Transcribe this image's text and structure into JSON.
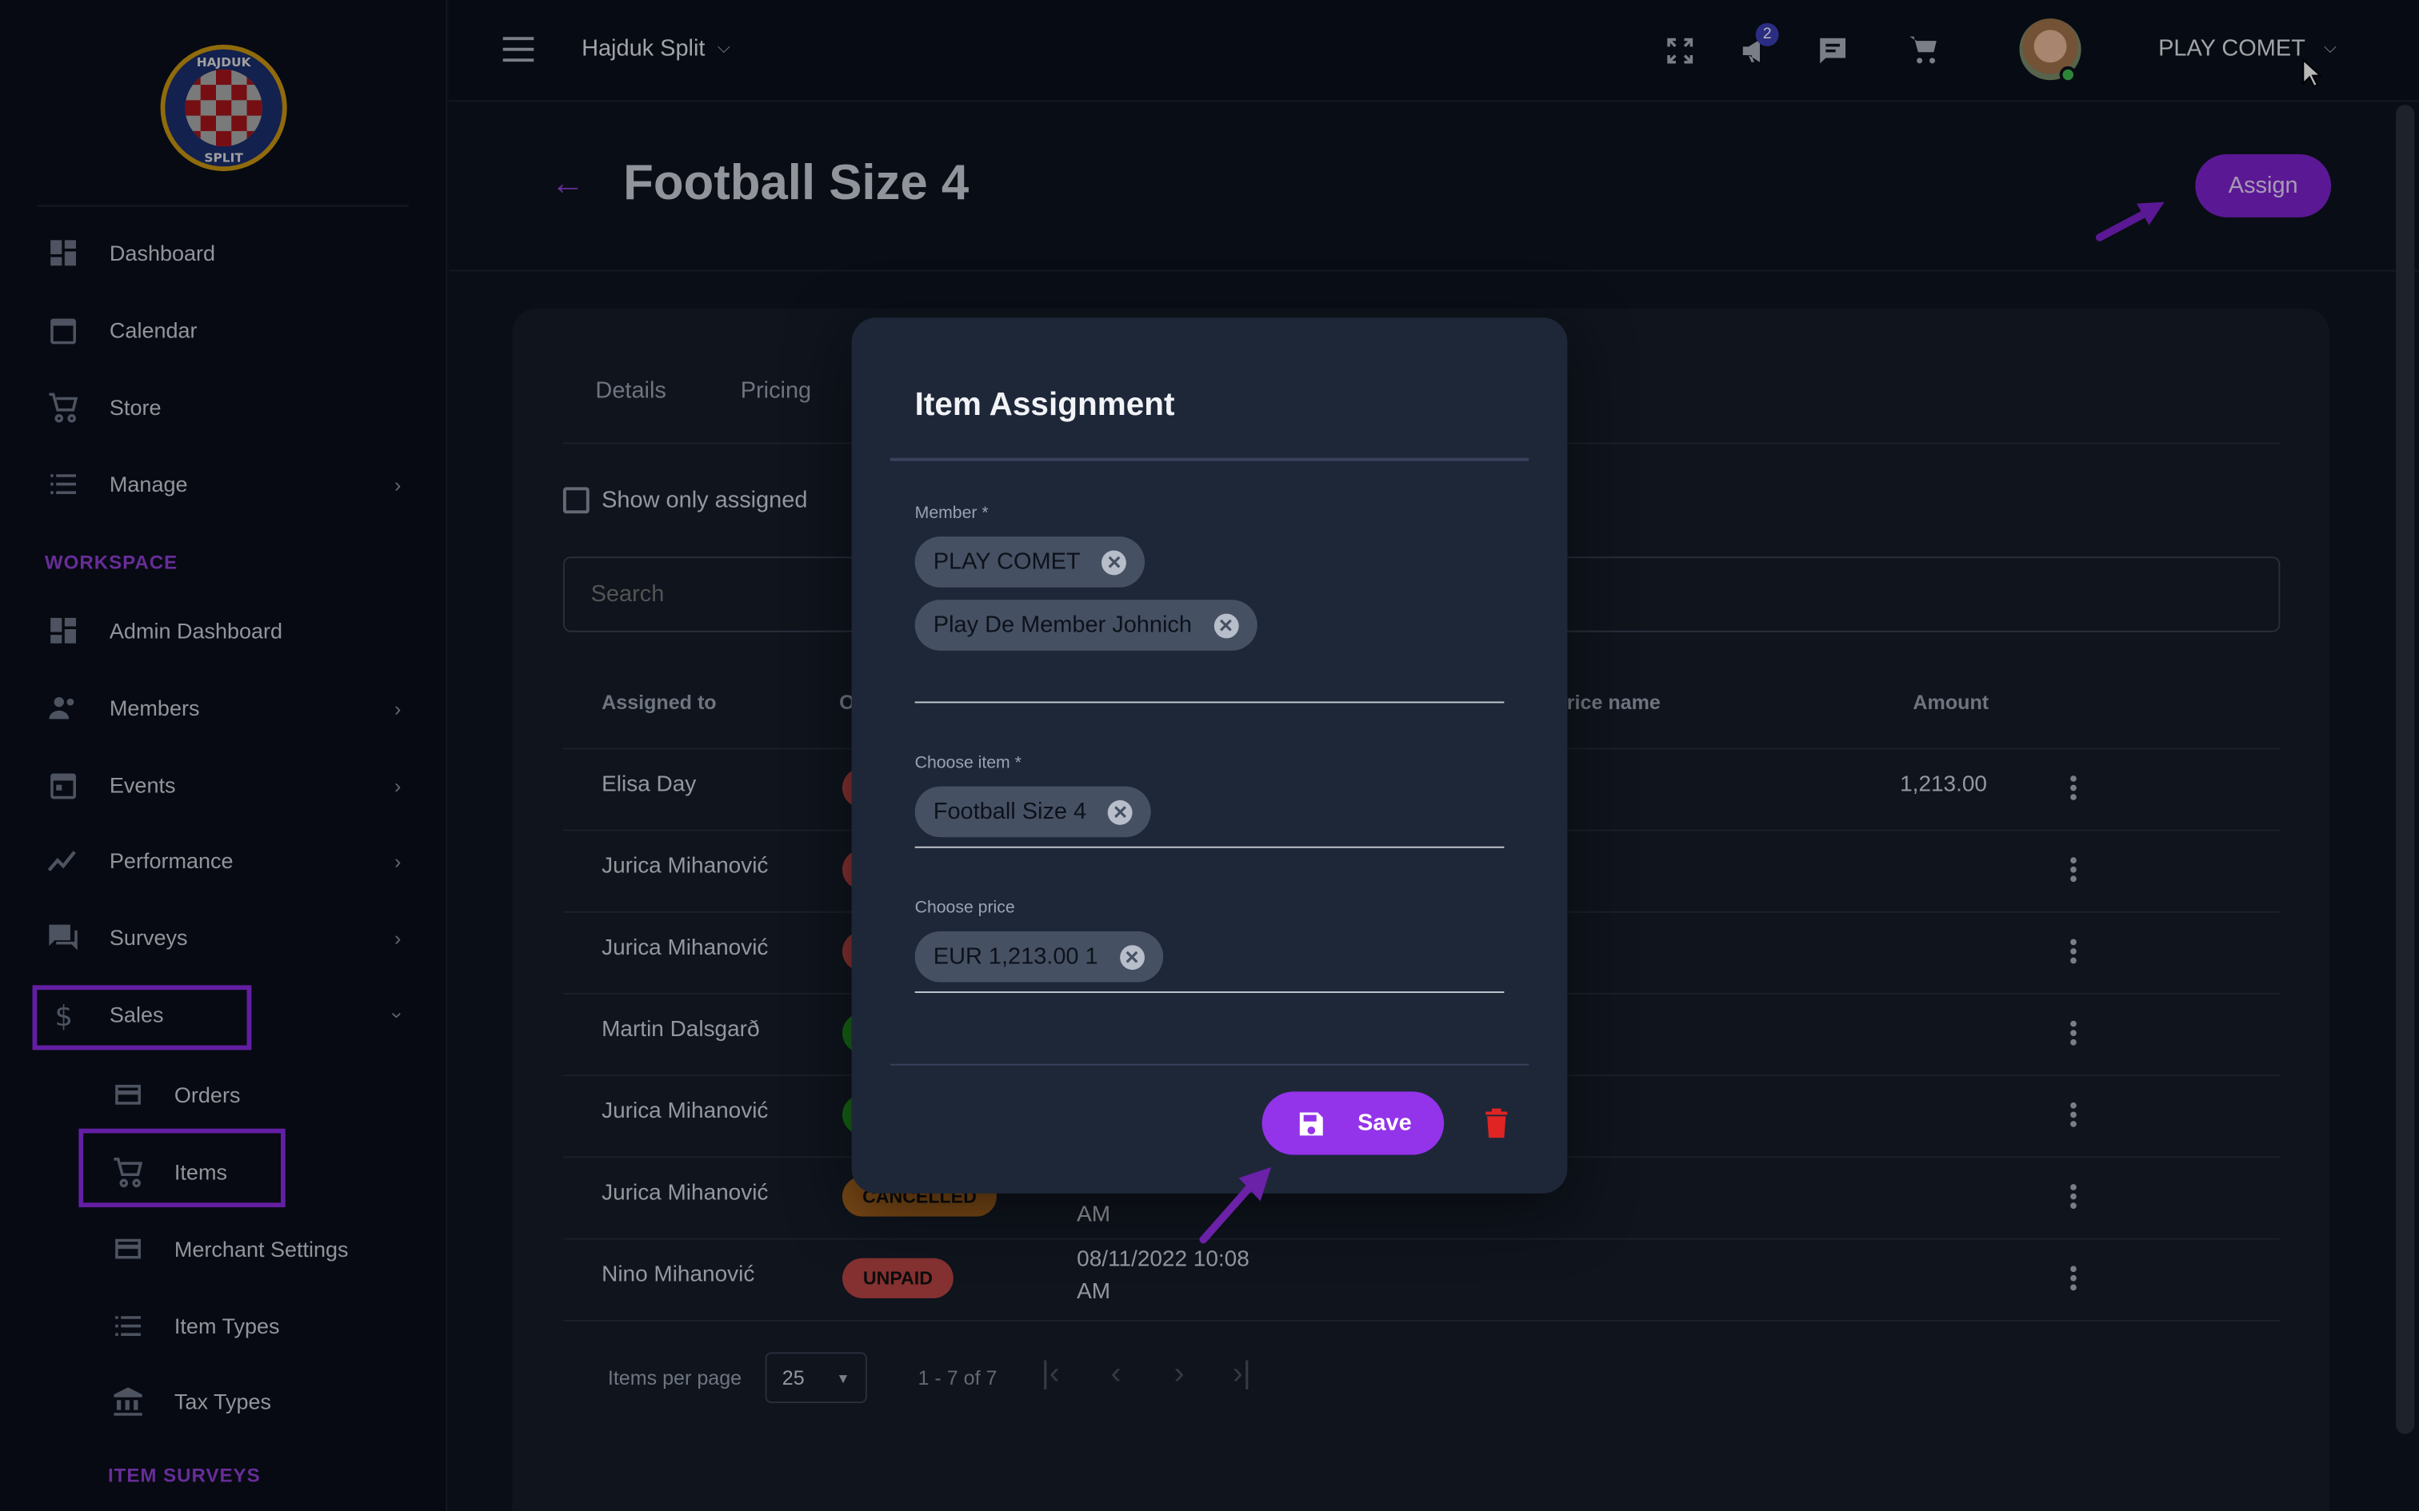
{
  "logo": {
    "text": "HAJDUK SPLIT"
  },
  "sidebar": {
    "items": [
      {
        "label": "Dashboard",
        "icon": "dashboard-icon"
      },
      {
        "label": "Calendar",
        "icon": "calendar-icon"
      },
      {
        "label": "Store",
        "icon": "cart-icon"
      },
      {
        "label": "Manage",
        "icon": "list-icon"
      }
    ],
    "workspace_label": "WORKSPACE",
    "workspace_items": [
      {
        "label": "Admin Dashboard",
        "icon": "dashboard-icon"
      },
      {
        "label": "Members",
        "icon": "people-icon"
      },
      {
        "label": "Events",
        "icon": "calendar-icon"
      },
      {
        "label": "Performance",
        "icon": "chart-icon"
      },
      {
        "label": "Surveys",
        "icon": "chat-icon"
      },
      {
        "label": "Sales",
        "icon": "dollar-icon"
      }
    ],
    "sales_sub": [
      {
        "label": "Orders",
        "icon": "card-icon"
      },
      {
        "label": "Items",
        "icon": "cart-icon"
      },
      {
        "label": "Merchant Settings",
        "icon": "card-icon"
      },
      {
        "label": "Item Types",
        "icon": "list-icon"
      },
      {
        "label": "Tax Types",
        "icon": "bank-icon"
      }
    ],
    "item_surveys_label": "ITEM SURVEYS"
  },
  "topbar": {
    "club": "Hajduk Split",
    "notification_count": "2",
    "user": "PLAY COMET"
  },
  "page": {
    "title": "Football Size 4",
    "assign_label": "Assign"
  },
  "tabs": [
    "Details",
    "Pricing"
  ],
  "filter": {
    "show_only_assigned": "Show only assigned",
    "checked": false,
    "search_placeholder": "Search"
  },
  "table": {
    "headers": {
      "assigned_to": "Assigned to",
      "status": "O",
      "price_name": "Price name",
      "amount": "Amount"
    },
    "rows": [
      {
        "assigned_to": "Elisa Day",
        "status": "",
        "status_color": "#b94545",
        "date": "",
        "amount": "1,213.00"
      },
      {
        "assigned_to": "Jurica Mihanović",
        "status": "",
        "status_color": "#b94545",
        "date": "",
        "amount": ""
      },
      {
        "assigned_to": "Jurica Mihanović",
        "status": "",
        "status_color": "#b94545",
        "date": "",
        "amount": ""
      },
      {
        "assigned_to": "Martin Dalsgarð",
        "status": "",
        "status_color": "#1f8b1f",
        "date": "",
        "amount": ""
      },
      {
        "assigned_to": "Jurica Mihanović",
        "status": "",
        "status_color": "#1f8b1f",
        "date": "",
        "amount": ""
      },
      {
        "assigned_to": "Jurica Mihanović",
        "status": "CANCELLED",
        "status_color": "#a8641f",
        "date": "AM",
        "amount": ""
      },
      {
        "assigned_to": "Nino Mihanović",
        "status": "UNPAID",
        "status_color": "#b94545",
        "date": "08/11/2022 10:08 AM",
        "amount": ""
      }
    ]
  },
  "pagination": {
    "items_per_page_label": "Items per page",
    "per_page": "25",
    "range": "1 - 7 of 7"
  },
  "modal": {
    "title": "Item Assignment",
    "member_label": "Member *",
    "members": [
      "PLAY COMET",
      "Play De Member Johnich"
    ],
    "item_label": "Choose item *",
    "item": "Football Size 4",
    "price_label": "Choose price",
    "price": "EUR 1,213.00 1",
    "save_label": "Save"
  },
  "colors": {
    "accent": "#9333ea",
    "delete": "#e02424",
    "background": "#0e1420"
  }
}
